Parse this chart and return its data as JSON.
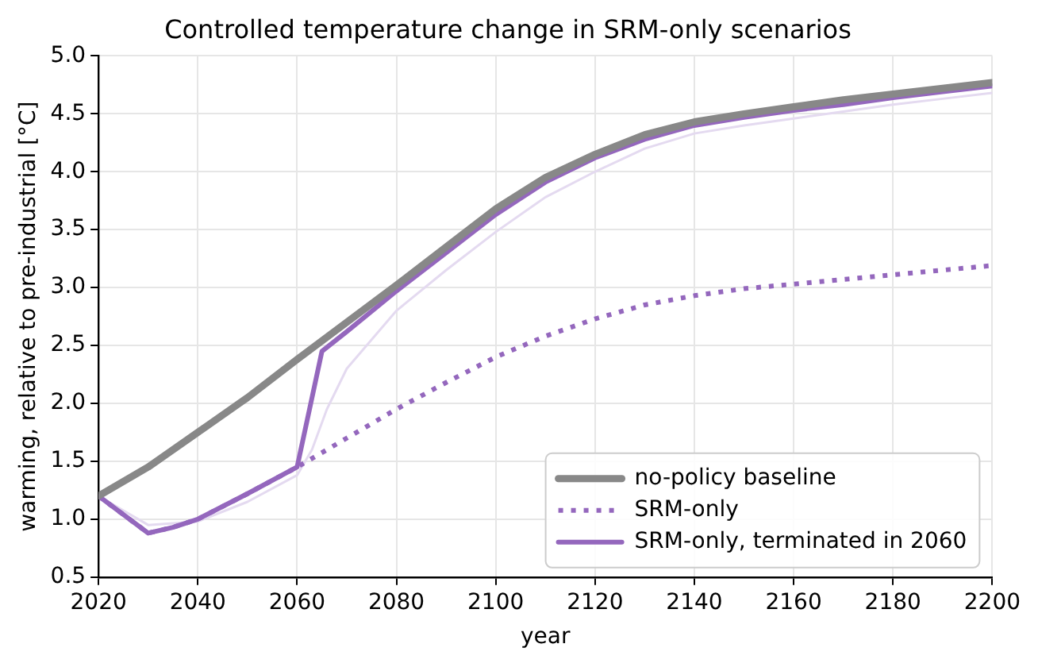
{
  "chart_data": {
    "type": "line",
    "title": "Controlled temperature change in SRM-only scenarios",
    "xlabel": "year",
    "ylabel": "warming, relative to pre-industrial [°C]",
    "xlim": [
      2020,
      2200
    ],
    "xticks": [
      2020,
      2040,
      2060,
      2080,
      2100,
      2120,
      2140,
      2160,
      2180,
      2200
    ],
    "ylim": [
      0.5,
      5.0
    ],
    "yticks": [
      {
        "value": 0.5,
        "label": "0.5"
      },
      {
        "value": 1.0,
        "label": "1.0"
      },
      {
        "value": 1.5,
        "label": "1.5"
      },
      {
        "value": 2.0,
        "label": "2.0"
      },
      {
        "value": 2.5,
        "label": "2.5"
      },
      {
        "value": 3.0,
        "label": "3.0"
      },
      {
        "value": 3.5,
        "label": "3.5"
      },
      {
        "value": 4.0,
        "label": "4.0"
      },
      {
        "value": 4.5,
        "label": "4.5"
      },
      {
        "value": 5.0,
        "label": "5.0"
      }
    ],
    "grid": true,
    "legend": "bottom right",
    "marker": "none",
    "series": [
      {
        "name": "no-policy baseline",
        "color": "#888888",
        "line_style": "solid",
        "x": [
          2020,
          2030,
          2040,
          2050,
          2060,
          2070,
          2080,
          2090,
          2100,
          2110,
          2120,
          2130,
          2140,
          2150,
          2160,
          2170,
          2180,
          2190,
          2200
        ],
        "values": [
          1.2,
          1.45,
          1.75,
          2.05,
          2.38,
          2.7,
          3.02,
          3.35,
          3.68,
          3.95,
          4.15,
          4.32,
          4.43,
          4.5,
          4.56,
          4.62,
          4.67,
          4.72,
          4.77
        ]
      },
      {
        "name": "SRM-only",
        "color": "#9467bd",
        "line_style": "dotted",
        "x": [
          2020,
          2030,
          2035,
          2040,
          2050,
          2060,
          2070,
          2080,
          2090,
          2100,
          2110,
          2120,
          2130,
          2140,
          2150,
          2160,
          2170,
          2180,
          2190,
          2200
        ],
        "values": [
          1.2,
          0.88,
          0.93,
          1.0,
          1.22,
          1.45,
          1.7,
          1.95,
          2.18,
          2.4,
          2.58,
          2.73,
          2.85,
          2.93,
          2.99,
          3.03,
          3.07,
          3.11,
          3.15,
          3.19
        ]
      },
      {
        "name": "SRM-only, terminated in 2060",
        "color": "#9467bd",
        "line_style": "solid",
        "x": [
          2020,
          2030,
          2035,
          2040,
          2050,
          2060,
          2065,
          2070,
          2080,
          2090,
          2100,
          2110,
          2120,
          2130,
          2140,
          2150,
          2160,
          2170,
          2180,
          2190,
          2200
        ],
        "values": [
          1.2,
          0.88,
          0.93,
          1.0,
          1.22,
          1.45,
          2.45,
          2.62,
          2.97,
          3.3,
          3.63,
          3.91,
          4.12,
          4.28,
          4.4,
          4.47,
          4.53,
          4.58,
          4.64,
          4.69,
          4.74
        ]
      },
      {
        "color": "#e4daf0",
        "line_style": "solid",
        "x": [
          2020,
          2030,
          2040,
          2050,
          2060,
          2063,
          2066,
          2070,
          2080,
          2090,
          2100,
          2110,
          2120,
          2130,
          2140,
          2150,
          2160,
          2170,
          2180,
          2190,
          2200
        ],
        "values": [
          1.2,
          0.95,
          0.98,
          1.15,
          1.38,
          1.6,
          1.95,
          2.3,
          2.8,
          3.15,
          3.48,
          3.78,
          4.0,
          4.2,
          4.33,
          4.4,
          4.46,
          4.52,
          4.58,
          4.63,
          4.68
        ]
      }
    ]
  }
}
